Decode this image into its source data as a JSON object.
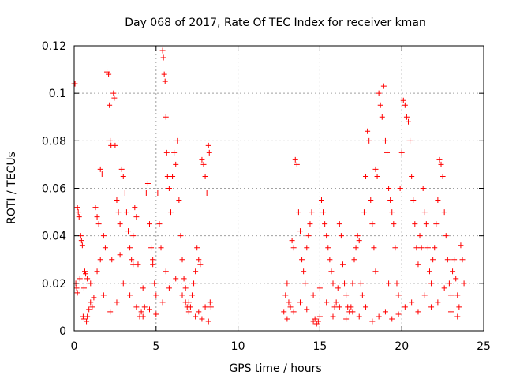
{
  "chart_data": {
    "type": "scatter",
    "title": "Day 068 of 2017, Rate Of TEC Index for receiver kman",
    "xlabel": "GPS time / hours",
    "ylabel": "ROTI / TECUs",
    "xlim": [
      0,
      25
    ],
    "ylim": [
      0,
      0.12
    ],
    "xticks": [
      0,
      5,
      10,
      15,
      20,
      25
    ],
    "xtick_labels": [
      "0",
      "5",
      "10",
      "15",
      "20",
      "25"
    ],
    "yticks": [
      0,
      0.02,
      0.04,
      0.06,
      0.08,
      0.1,
      0.12
    ],
    "ytick_labels": [
      "0",
      "0.02",
      "0.04",
      "0.06",
      "0.08",
      "0.1",
      "0.12"
    ],
    "grid": true,
    "marker": "plus",
    "color": "#ff0000",
    "series": [
      {
        "values": [
          [
            0.0,
            0.104
          ],
          [
            0.05,
            0.104
          ],
          [
            0.1,
            0.02
          ],
          [
            0.15,
            0.018
          ],
          [
            0.2,
            0.052
          ],
          [
            0.25,
            0.05
          ],
          [
            0.3,
            0.048
          ],
          [
            0.35,
            0.022
          ],
          [
            0.4,
            0.04
          ],
          [
            0.45,
            0.038
          ],
          [
            0.5,
            0.036
          ],
          [
            0.55,
            0.006
          ],
          [
            0.6,
            0.005
          ],
          [
            0.65,
            0.025
          ],
          [
            0.7,
            0.024
          ],
          [
            0.75,
            0.004
          ],
          [
            0.8,
            0.006
          ],
          [
            0.9,
            0.009
          ],
          [
            1.0,
            0.012
          ],
          [
            1.1,
            0.01
          ],
          [
            1.2,
            0.014
          ],
          [
            1.3,
            0.052
          ],
          [
            1.4,
            0.048
          ],
          [
            1.5,
            0.045
          ],
          [
            1.6,
            0.068
          ],
          [
            1.7,
            0.066
          ],
          [
            1.8,
            0.04
          ],
          [
            1.9,
            0.035
          ],
          [
            2.0,
            0.109
          ],
          [
            2.1,
            0.108
          ],
          [
            2.15,
            0.095
          ],
          [
            2.2,
            0.08
          ],
          [
            2.25,
            0.078
          ],
          [
            2.3,
            0.03
          ],
          [
            2.4,
            0.1
          ],
          [
            2.45,
            0.098
          ],
          [
            2.5,
            0.078
          ],
          [
            2.6,
            0.055
          ],
          [
            2.7,
            0.05
          ],
          [
            2.8,
            0.045
          ],
          [
            2.9,
            0.068
          ],
          [
            3.0,
            0.065
          ],
          [
            3.1,
            0.058
          ],
          [
            3.2,
            0.05
          ],
          [
            3.3,
            0.042
          ],
          [
            3.4,
            0.035
          ],
          [
            3.5,
            0.03
          ],
          [
            3.6,
            0.04
          ],
          [
            3.7,
            0.052
          ],
          [
            3.8,
            0.048
          ],
          [
            3.9,
            0.028
          ],
          [
            4.0,
            0.006
          ],
          [
            4.1,
            0.008
          ],
          [
            4.2,
            0.018
          ],
          [
            4.3,
            0.01
          ],
          [
            4.4,
            0.058
          ],
          [
            4.5,
            0.062
          ],
          [
            4.6,
            0.045
          ],
          [
            4.7,
            0.035
          ],
          [
            4.8,
            0.028
          ],
          [
            4.9,
            0.02
          ],
          [
            5.0,
            0.015
          ],
          [
            5.1,
            0.058
          ],
          [
            5.2,
            0.045
          ],
          [
            5.3,
            0.035
          ],
          [
            5.4,
            0.118
          ],
          [
            5.45,
            0.115
          ],
          [
            5.5,
            0.108
          ],
          [
            5.55,
            0.105
          ],
          [
            5.6,
            0.09
          ],
          [
            5.65,
            0.075
          ],
          [
            5.7,
            0.065
          ],
          [
            5.8,
            0.06
          ],
          [
            5.9,
            0.05
          ],
          [
            6.0,
            0.065
          ],
          [
            6.1,
            0.075
          ],
          [
            6.2,
            0.07
          ],
          [
            6.3,
            0.08
          ],
          [
            6.4,
            0.055
          ],
          [
            6.5,
            0.04
          ],
          [
            6.6,
            0.03
          ],
          [
            6.7,
            0.022
          ],
          [
            6.8,
            0.012
          ],
          [
            6.9,
            0.01
          ],
          [
            7.0,
            0.008
          ],
          [
            7.1,
            0.01
          ],
          [
            7.2,
            0.015
          ],
          [
            7.3,
            0.02
          ],
          [
            7.4,
            0.025
          ],
          [
            7.5,
            0.035
          ],
          [
            7.6,
            0.03
          ],
          [
            7.7,
            0.028
          ],
          [
            7.8,
            0.072
          ],
          [
            7.9,
            0.07
          ],
          [
            8.0,
            0.065
          ],
          [
            8.1,
            0.058
          ],
          [
            8.2,
            0.078
          ],
          [
            8.25,
            0.075
          ],
          [
            8.3,
            0.012
          ],
          [
            8.35,
            0.01
          ],
          [
            0.2,
            0.016
          ],
          [
            0.6,
            0.018
          ],
          [
            1.0,
            0.02
          ],
          [
            1.4,
            0.025
          ],
          [
            1.8,
            0.015
          ],
          [
            2.2,
            0.008
          ],
          [
            2.6,
            0.012
          ],
          [
            3.0,
            0.02
          ],
          [
            3.4,
            0.015
          ],
          [
            3.8,
            0.01
          ],
          [
            4.2,
            0.006
          ],
          [
            4.6,
            0.009
          ],
          [
            5.0,
            0.007
          ],
          [
            5.4,
            0.012
          ],
          [
            5.8,
            0.018
          ],
          [
            6.2,
            0.022
          ],
          [
            6.6,
            0.015
          ],
          [
            7.0,
            0.012
          ],
          [
            7.4,
            0.006
          ],
          [
            7.8,
            0.005
          ],
          [
            8.2,
            0.004
          ],
          [
            8.0,
            0.01
          ],
          [
            7.6,
            0.008
          ],
          [
            6.8,
            0.018
          ],
          [
            5.6,
            0.025
          ],
          [
            4.8,
            0.03
          ],
          [
            3.6,
            0.028
          ],
          [
            2.8,
            0.032
          ],
          [
            1.6,
            0.03
          ],
          [
            0.8,
            0.022
          ],
          [
            12.8,
            0.008
          ],
          [
            12.9,
            0.015
          ],
          [
            13.0,
            0.02
          ],
          [
            13.1,
            0.012
          ],
          [
            13.2,
            0.01
          ],
          [
            13.3,
            0.038
          ],
          [
            13.4,
            0.035
          ],
          [
            13.5,
            0.072
          ],
          [
            13.6,
            0.07
          ],
          [
            13.7,
            0.05
          ],
          [
            13.8,
            0.042
          ],
          [
            13.9,
            0.03
          ],
          [
            14.0,
            0.025
          ],
          [
            14.1,
            0.02
          ],
          [
            14.2,
            0.035
          ],
          [
            14.3,
            0.04
          ],
          [
            14.4,
            0.045
          ],
          [
            14.5,
            0.05
          ],
          [
            14.6,
            0.015
          ],
          [
            14.7,
            0.005
          ],
          [
            14.8,
            0.003
          ],
          [
            14.9,
            0.004
          ],
          [
            15.0,
            0.006
          ],
          [
            15.1,
            0.055
          ],
          [
            15.2,
            0.05
          ],
          [
            15.3,
            0.045
          ],
          [
            15.4,
            0.04
          ],
          [
            15.5,
            0.035
          ],
          [
            15.6,
            0.03
          ],
          [
            15.7,
            0.025
          ],
          [
            15.8,
            0.02
          ],
          [
            15.9,
            0.01
          ],
          [
            16.0,
            0.012
          ],
          [
            16.1,
            0.018
          ],
          [
            16.2,
            0.045
          ],
          [
            16.3,
            0.04
          ],
          [
            16.4,
            0.028
          ],
          [
            16.5,
            0.02
          ],
          [
            16.6,
            0.015
          ],
          [
            16.7,
            0.01
          ],
          [
            16.8,
            0.008
          ],
          [
            16.9,
            0.01
          ],
          [
            17.0,
            0.02
          ],
          [
            17.1,
            0.03
          ],
          [
            17.2,
            0.035
          ],
          [
            17.3,
            0.04
          ],
          [
            17.4,
            0.038
          ],
          [
            17.5,
            0.02
          ],
          [
            17.6,
            0.015
          ],
          [
            17.7,
            0.05
          ],
          [
            17.8,
            0.065
          ],
          [
            17.9,
            0.084
          ],
          [
            18.0,
            0.08
          ],
          [
            18.1,
            0.055
          ],
          [
            18.2,
            0.045
          ],
          [
            18.3,
            0.035
          ],
          [
            18.4,
            0.068
          ],
          [
            18.5,
            0.065
          ],
          [
            18.6,
            0.1
          ],
          [
            18.7,
            0.095
          ],
          [
            18.8,
            0.09
          ],
          [
            18.9,
            0.103
          ],
          [
            19.0,
            0.08
          ],
          [
            19.1,
            0.075
          ],
          [
            19.2,
            0.06
          ],
          [
            19.3,
            0.055
          ],
          [
            19.4,
            0.05
          ],
          [
            19.5,
            0.045
          ],
          [
            19.6,
            0.035
          ],
          [
            19.7,
            0.02
          ],
          [
            19.8,
            0.015
          ],
          [
            19.9,
            0.06
          ],
          [
            20.0,
            0.075
          ],
          [
            20.1,
            0.097
          ],
          [
            20.2,
            0.095
          ],
          [
            20.3,
            0.09
          ],
          [
            20.4,
            0.088
          ],
          [
            20.5,
            0.08
          ],
          [
            20.6,
            0.065
          ],
          [
            20.7,
            0.055
          ],
          [
            20.8,
            0.045
          ],
          [
            20.9,
            0.035
          ],
          [
            21.0,
            0.028
          ],
          [
            21.1,
            0.04
          ],
          [
            21.2,
            0.035
          ],
          [
            21.3,
            0.06
          ],
          [
            21.4,
            0.05
          ],
          [
            21.5,
            0.045
          ],
          [
            21.6,
            0.035
          ],
          [
            21.7,
            0.025
          ],
          [
            21.8,
            0.02
          ],
          [
            21.9,
            0.03
          ],
          [
            22.0,
            0.035
          ],
          [
            22.1,
            0.045
          ],
          [
            22.2,
            0.055
          ],
          [
            22.3,
            0.072
          ],
          [
            22.4,
            0.07
          ],
          [
            22.5,
            0.065
          ],
          [
            22.6,
            0.05
          ],
          [
            22.7,
            0.04
          ],
          [
            22.8,
            0.03
          ],
          [
            22.9,
            0.02
          ],
          [
            23.0,
            0.015
          ],
          [
            23.1,
            0.025
          ],
          [
            23.2,
            0.03
          ],
          [
            23.3,
            0.022
          ],
          [
            23.4,
            0.015
          ],
          [
            23.5,
            0.01
          ],
          [
            23.6,
            0.036
          ],
          [
            23.7,
            0.03
          ],
          [
            13.0,
            0.005
          ],
          [
            13.4,
            0.008
          ],
          [
            13.8,
            0.012
          ],
          [
            14.2,
            0.009
          ],
          [
            14.6,
            0.004
          ],
          [
            15.0,
            0.018
          ],
          [
            15.4,
            0.012
          ],
          [
            15.8,
            0.006
          ],
          [
            16.2,
            0.01
          ],
          [
            16.6,
            0.005
          ],
          [
            17.0,
            0.008
          ],
          [
            17.4,
            0.006
          ],
          [
            17.8,
            0.01
          ],
          [
            18.2,
            0.004
          ],
          [
            18.6,
            0.006
          ],
          [
            19.0,
            0.008
          ],
          [
            19.4,
            0.005
          ],
          [
            19.8,
            0.007
          ],
          [
            20.2,
            0.01
          ],
          [
            20.6,
            0.012
          ],
          [
            21.0,
            0.008
          ],
          [
            21.4,
            0.015
          ],
          [
            21.8,
            0.01
          ],
          [
            22.2,
            0.012
          ],
          [
            22.6,
            0.018
          ],
          [
            23.0,
            0.008
          ],
          [
            23.4,
            0.006
          ],
          [
            23.8,
            0.02
          ],
          [
            19.2,
            0.02
          ],
          [
            18.4,
            0.025
          ]
        ]
      }
    ]
  }
}
